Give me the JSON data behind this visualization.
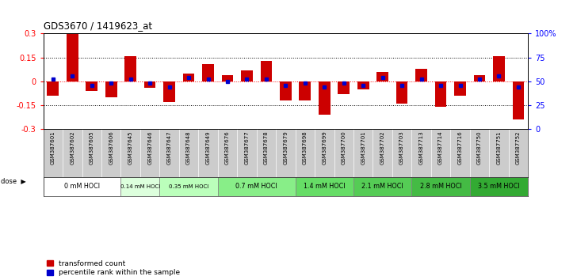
{
  "title": "GDS3670 / 1419623_at",
  "samples": [
    "GSM387601",
    "GSM387602",
    "GSM387605",
    "GSM387606",
    "GSM387645",
    "GSM387646",
    "GSM387647",
    "GSM387648",
    "GSM387649",
    "GSM387676",
    "GSM387677",
    "GSM387678",
    "GSM387679",
    "GSM387698",
    "GSM387699",
    "GSM387700",
    "GSM387701",
    "GSM387702",
    "GSM387703",
    "GSM387713",
    "GSM387714",
    "GSM387716",
    "GSM387750",
    "GSM387751",
    "GSM387752"
  ],
  "red_values": [
    -0.09,
    0.3,
    -0.06,
    -0.1,
    0.16,
    -0.04,
    -0.13,
    0.05,
    0.11,
    0.04,
    0.07,
    0.13,
    -0.12,
    -0.12,
    -0.21,
    -0.08,
    -0.05,
    0.06,
    -0.14,
    0.08,
    -0.16,
    -0.09,
    0.04,
    0.16,
    -0.24
  ],
  "blue_values": [
    0.52,
    0.56,
    0.46,
    0.48,
    0.52,
    0.48,
    0.44,
    0.54,
    0.52,
    0.5,
    0.52,
    0.52,
    0.46,
    0.48,
    0.44,
    0.48,
    0.46,
    0.54,
    0.46,
    0.52,
    0.46,
    0.46,
    0.52,
    0.56,
    0.44
  ],
  "dose_groups": [
    {
      "label": "0 mM HOCl",
      "start": 0,
      "end": 4,
      "color": "#ffffff"
    },
    {
      "label": "0.14 mM HOCl",
      "start": 4,
      "end": 6,
      "color": "#ddffdd"
    },
    {
      "label": "0.35 mM HOCl",
      "start": 6,
      "end": 9,
      "color": "#bbffbb"
    },
    {
      "label": "0.7 mM HOCl",
      "start": 9,
      "end": 13,
      "color": "#88ee88"
    },
    {
      "label": "1.4 mM HOCl",
      "start": 13,
      "end": 16,
      "color": "#66dd66"
    },
    {
      "label": "2.1 mM HOCl",
      "start": 16,
      "end": 19,
      "color": "#55cc55"
    },
    {
      "label": "2.8 mM HOCl",
      "start": 19,
      "end": 22,
      "color": "#44bb44"
    },
    {
      "label": "3.5 mM HOCl",
      "start": 22,
      "end": 25,
      "color": "#33aa33"
    }
  ],
  "ylim": [
    -0.3,
    0.3
  ],
  "yticks_left": [
    -0.3,
    -0.15,
    0.0,
    0.15,
    0.3
  ],
  "yticks_right": [
    0,
    25,
    50,
    75,
    100
  ],
  "right_ytick_labels": [
    "0",
    "25",
    "50",
    "75",
    "100%"
  ],
  "bar_color": "#cc0000",
  "dot_color": "#0000cc",
  "bar_width": 0.6,
  "bg_color": "#ffffff",
  "label_bg": "#cccccc",
  "dose_arrow_label": "dose"
}
